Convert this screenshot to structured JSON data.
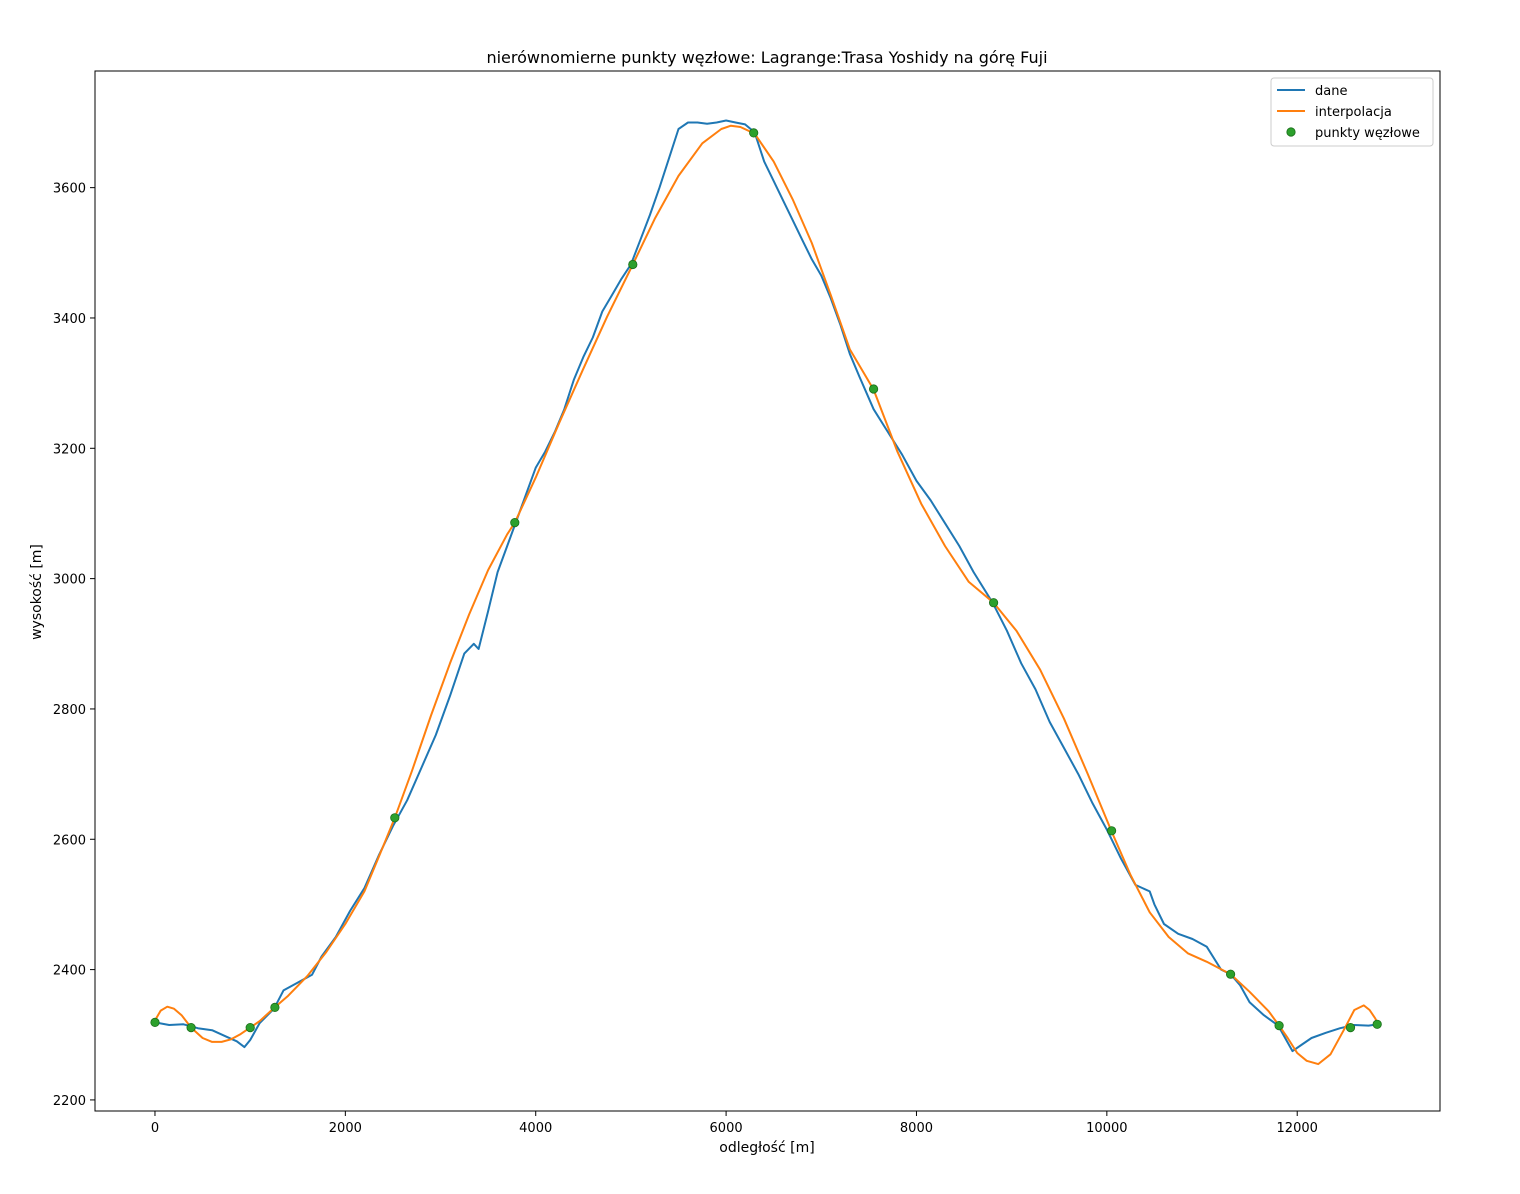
{
  "chart_data": {
    "type": "line",
    "title": "nierównomierne punkty węzłowe: Lagrange:Trasa Yoshidy na górę Fuji",
    "xlabel": "odległość [m]",
    "ylabel": "wysokość [m]",
    "xlim": [
      -630,
      13500
    ],
    "ylim": [
      2183,
      3779
    ],
    "x_ticks": [
      0,
      2000,
      4000,
      6000,
      8000,
      10000,
      12000
    ],
    "x_tick_labels": [
      "0",
      "2000",
      "4000",
      "6000",
      "8000",
      "10000",
      "12000"
    ],
    "y_ticks": [
      2200,
      2400,
      2600,
      2800,
      3000,
      3200,
      3400,
      3600
    ],
    "y_tick_labels": [
      "2200",
      "2400",
      "2600",
      "2800",
      "3000",
      "3200",
      "3400",
      "3600"
    ],
    "grid": false,
    "legend_position": "top-right",
    "colors": {
      "dane": "#1f77b4",
      "interpolacja": "#ff7f0e",
      "punkty_wezlowe": "#2ca02c",
      "node_edge": "#1a6e1a"
    },
    "series": [
      {
        "name": "dane",
        "type": "line",
        "x": [
          0,
          150,
          300,
          450,
          600,
          750,
          860,
          940,
          1000,
          1100,
          1250,
          1350,
          1500,
          1650,
          1750,
          1900,
          2050,
          2200,
          2350,
          2500,
          2650,
          2800,
          2950,
          3100,
          3250,
          3350,
          3400,
          3500,
          3600,
          3700,
          3800,
          3900,
          4000,
          4100,
          4200,
          4300,
          4400,
          4500,
          4600,
          4700,
          4800,
          4900,
          5000,
          5100,
          5200,
          5300,
          5400,
          5500,
          5600,
          5700,
          5800,
          5900,
          6000,
          6100,
          6200,
          6300,
          6400,
          6500,
          6600,
          6700,
          6800,
          6900,
          7000,
          7100,
          7200,
          7300,
          7400,
          7550,
          7700,
          7850,
          8000,
          8150,
          8300,
          8450,
          8600,
          8800,
          8950,
          9100,
          9250,
          9400,
          9550,
          9700,
          9850,
          10000,
          10050,
          10150,
          10300,
          10450,
          10500,
          10600,
          10750,
          10900,
          11050,
          11200,
          11300,
          11400,
          11500,
          11650,
          11800,
          11950,
          12050,
          12150,
          12300,
          12450,
          12600,
          12750,
          12850
        ],
        "y": [
          2319,
          2315,
          2316,
          2310,
          2307,
          2297,
          2290,
          2281,
          2292,
          2318,
          2340,
          2368,
          2380,
          2392,
          2420,
          2450,
          2490,
          2525,
          2575,
          2620,
          2660,
          2710,
          2760,
          2820,
          2885,
          2900,
          2892,
          2950,
          3010,
          3050,
          3090,
          3130,
          3170,
          3195,
          3225,
          3260,
          3305,
          3340,
          3370,
          3410,
          3435,
          3460,
          3482,
          3520,
          3558,
          3600,
          3645,
          3690,
          3700,
          3700,
          3698,
          3700,
          3703,
          3700,
          3697,
          3685,
          3640,
          3610,
          3580,
          3550,
          3520,
          3490,
          3465,
          3430,
          3390,
          3345,
          3310,
          3260,
          3225,
          3190,
          3150,
          3120,
          3085,
          3050,
          3010,
          2963,
          2920,
          2870,
          2830,
          2780,
          2740,
          2700,
          2655,
          2615,
          2600,
          2570,
          2530,
          2520,
          2500,
          2470,
          2455,
          2447,
          2435,
          2400,
          2393,
          2376,
          2350,
          2330,
          2314,
          2275,
          2285,
          2295,
          2303,
          2310,
          2315,
          2314,
          2316
        ]
      },
      {
        "name": "interpolacja",
        "type": "line",
        "x": [
          0,
          60,
          130,
          200,
          280,
          380,
          500,
          600,
          700,
          800,
          900,
          1000,
          1100,
          1250,
          1400,
          1600,
          1800,
          2000,
          2200,
          2400,
          2520,
          2700,
          2900,
          3100,
          3300,
          3500,
          3700,
          3780,
          4000,
          4250,
          4500,
          4750,
          5020,
          5250,
          5500,
          5750,
          5950,
          6050,
          6150,
          6300,
          6500,
          6700,
          6900,
          7100,
          7300,
          7550,
          7800,
          8050,
          8300,
          8550,
          8810,
          9050,
          9300,
          9550,
          9800,
          10050,
          10250,
          10450,
          10650,
          10850,
          11050,
          11300,
          11500,
          11700,
          11810,
          11900,
          12000,
          12100,
          12220,
          12350,
          12500,
          12600,
          12700,
          12760,
          12820,
          12850
        ],
        "y": [
          2322,
          2337,
          2343,
          2340,
          2330,
          2311,
          2295,
          2289,
          2289,
          2293,
          2301,
          2311,
          2321,
          2341,
          2360,
          2390,
          2427,
          2470,
          2520,
          2590,
          2633,
          2705,
          2790,
          2870,
          2945,
          3013,
          3068,
          3086,
          3155,
          3240,
          3322,
          3402,
          3482,
          3552,
          3618,
          3668,
          3690,
          3695,
          3693,
          3683,
          3640,
          3582,
          3515,
          3435,
          3352,
          3290,
          3195,
          3115,
          3050,
          2995,
          2963,
          2920,
          2860,
          2785,
          2700,
          2612,
          2545,
          2488,
          2450,
          2425,
          2412,
          2393,
          2366,
          2336,
          2314,
          2295,
          2272,
          2260,
          2255,
          2270,
          2310,
          2338,
          2345,
          2338,
          2325,
          2316
        ]
      },
      {
        "name": "punkty węzłowe",
        "type": "scatter",
        "x": [
          0,
          380,
          1000,
          1260,
          2520,
          3780,
          5020,
          6290,
          7550,
          8810,
          10050,
          11300,
          11810,
          12560,
          12840
        ],
        "y": [
          2319,
          2311,
          2311,
          2342,
          2633,
          3086,
          3482,
          3684,
          3291,
          2963,
          2613,
          2393,
          2314,
          2311,
          2316
        ]
      }
    ]
  }
}
